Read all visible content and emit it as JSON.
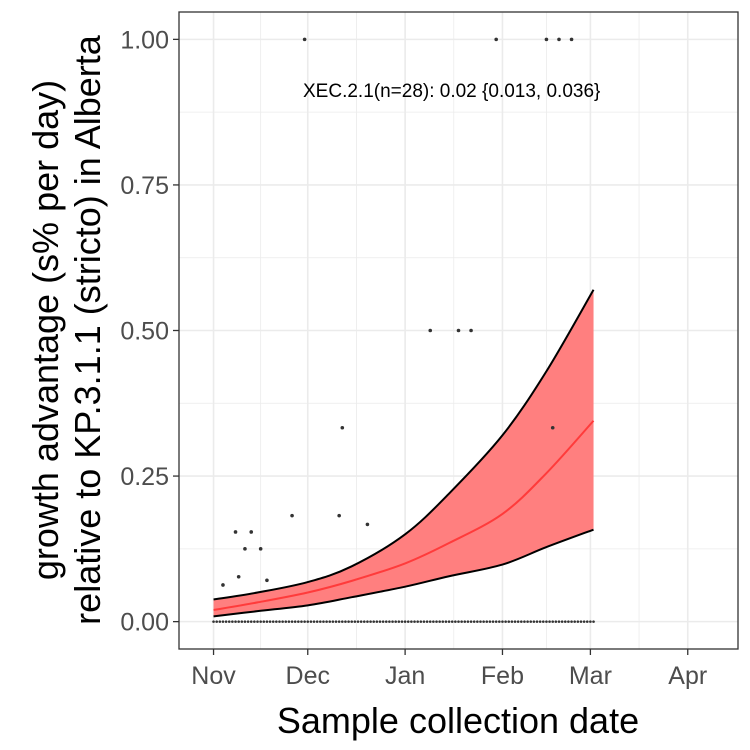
{
  "chart_data": {
    "type": "line",
    "xlabel": "Sample collection date",
    "ylabel_lines": [
      "growth advantage (s% per day)",
      "relative to KP.3.1.1 (stricto) in Alberta"
    ],
    "annotation": "XEC.2.1(n=28): 0.02 {0.013, 0.036}",
    "x_ticks": [
      {
        "label": "Nov",
        "date": "2024-11-01"
      },
      {
        "label": "Dec",
        "date": "2024-12-01"
      },
      {
        "label": "Jan",
        "date": "2025-01-01"
      },
      {
        "label": "Feb",
        "date": "2025-02-01"
      },
      {
        "label": "Mar",
        "date": "2025-03-01"
      },
      {
        "label": "Apr",
        "date": "2025-04-01"
      }
    ],
    "x_range": [
      "2024-10-21",
      "2025-04-17"
    ],
    "y_ticks": [
      {
        "label": "0.00",
        "value": 0.0
      },
      {
        "label": "0.25",
        "value": 0.25
      },
      {
        "label": "0.50",
        "value": 0.5
      },
      {
        "label": "0.75",
        "value": 0.75
      },
      {
        "label": "1.00",
        "value": 1.0
      }
    ],
    "ylim": [
      -0.047,
      1.047
    ],
    "grid": true,
    "colors": {
      "ribbon": "#ff7f7f",
      "fit_line": "#ff3b3b",
      "bounds": "#000000",
      "points": "#333333",
      "grid": "#ebebeb",
      "panel_border": "#333333"
    },
    "fit": {
      "x": [
        "2024-11-01",
        "2024-11-15",
        "2024-12-01",
        "2024-12-15",
        "2025-01-01",
        "2025-01-15",
        "2025-02-01",
        "2025-02-15",
        "2025-03-02"
      ],
      "mid": [
        0.02,
        0.033,
        0.05,
        0.07,
        0.1,
        0.135,
        0.185,
        0.255,
        0.345
      ],
      "lower": [
        0.009,
        0.018,
        0.028,
        0.042,
        0.06,
        0.078,
        0.098,
        0.128,
        0.158
      ],
      "upper": [
        0.038,
        0.05,
        0.068,
        0.095,
        0.15,
        0.22,
        0.32,
        0.43,
        0.57
      ]
    },
    "points": [
      {
        "x": "2024-11-04",
        "y": 0.063
      },
      {
        "x": "2024-11-08",
        "y": 0.154
      },
      {
        "x": "2024-11-09",
        "y": 0.077
      },
      {
        "x": "2024-11-11",
        "y": 0.125
      },
      {
        "x": "2024-11-13",
        "y": 0.154
      },
      {
        "x": "2024-11-16",
        "y": 0.125
      },
      {
        "x": "2024-11-18",
        "y": 0.071
      },
      {
        "x": "2024-11-26",
        "y": 0.182
      },
      {
        "x": "2024-11-30",
        "y": 1.0
      },
      {
        "x": "2024-12-11",
        "y": 0.182
      },
      {
        "x": "2024-12-12",
        "y": 0.333
      },
      {
        "x": "2024-12-20",
        "y": 0.167
      },
      {
        "x": "2025-01-09",
        "y": 0.5
      },
      {
        "x": "2025-01-18",
        "y": 0.5
      },
      {
        "x": "2025-01-22",
        "y": 0.5
      },
      {
        "x": "2025-01-30",
        "y": 1.0
      },
      {
        "x": "2025-02-15",
        "y": 1.0
      },
      {
        "x": "2025-02-17",
        "y": 0.333
      },
      {
        "x": "2025-02-19",
        "y": 1.0
      },
      {
        "x": "2025-02-23",
        "y": 1.0
      }
    ],
    "zero_points_start": "2024-11-01",
    "zero_points_end": "2025-03-02"
  }
}
